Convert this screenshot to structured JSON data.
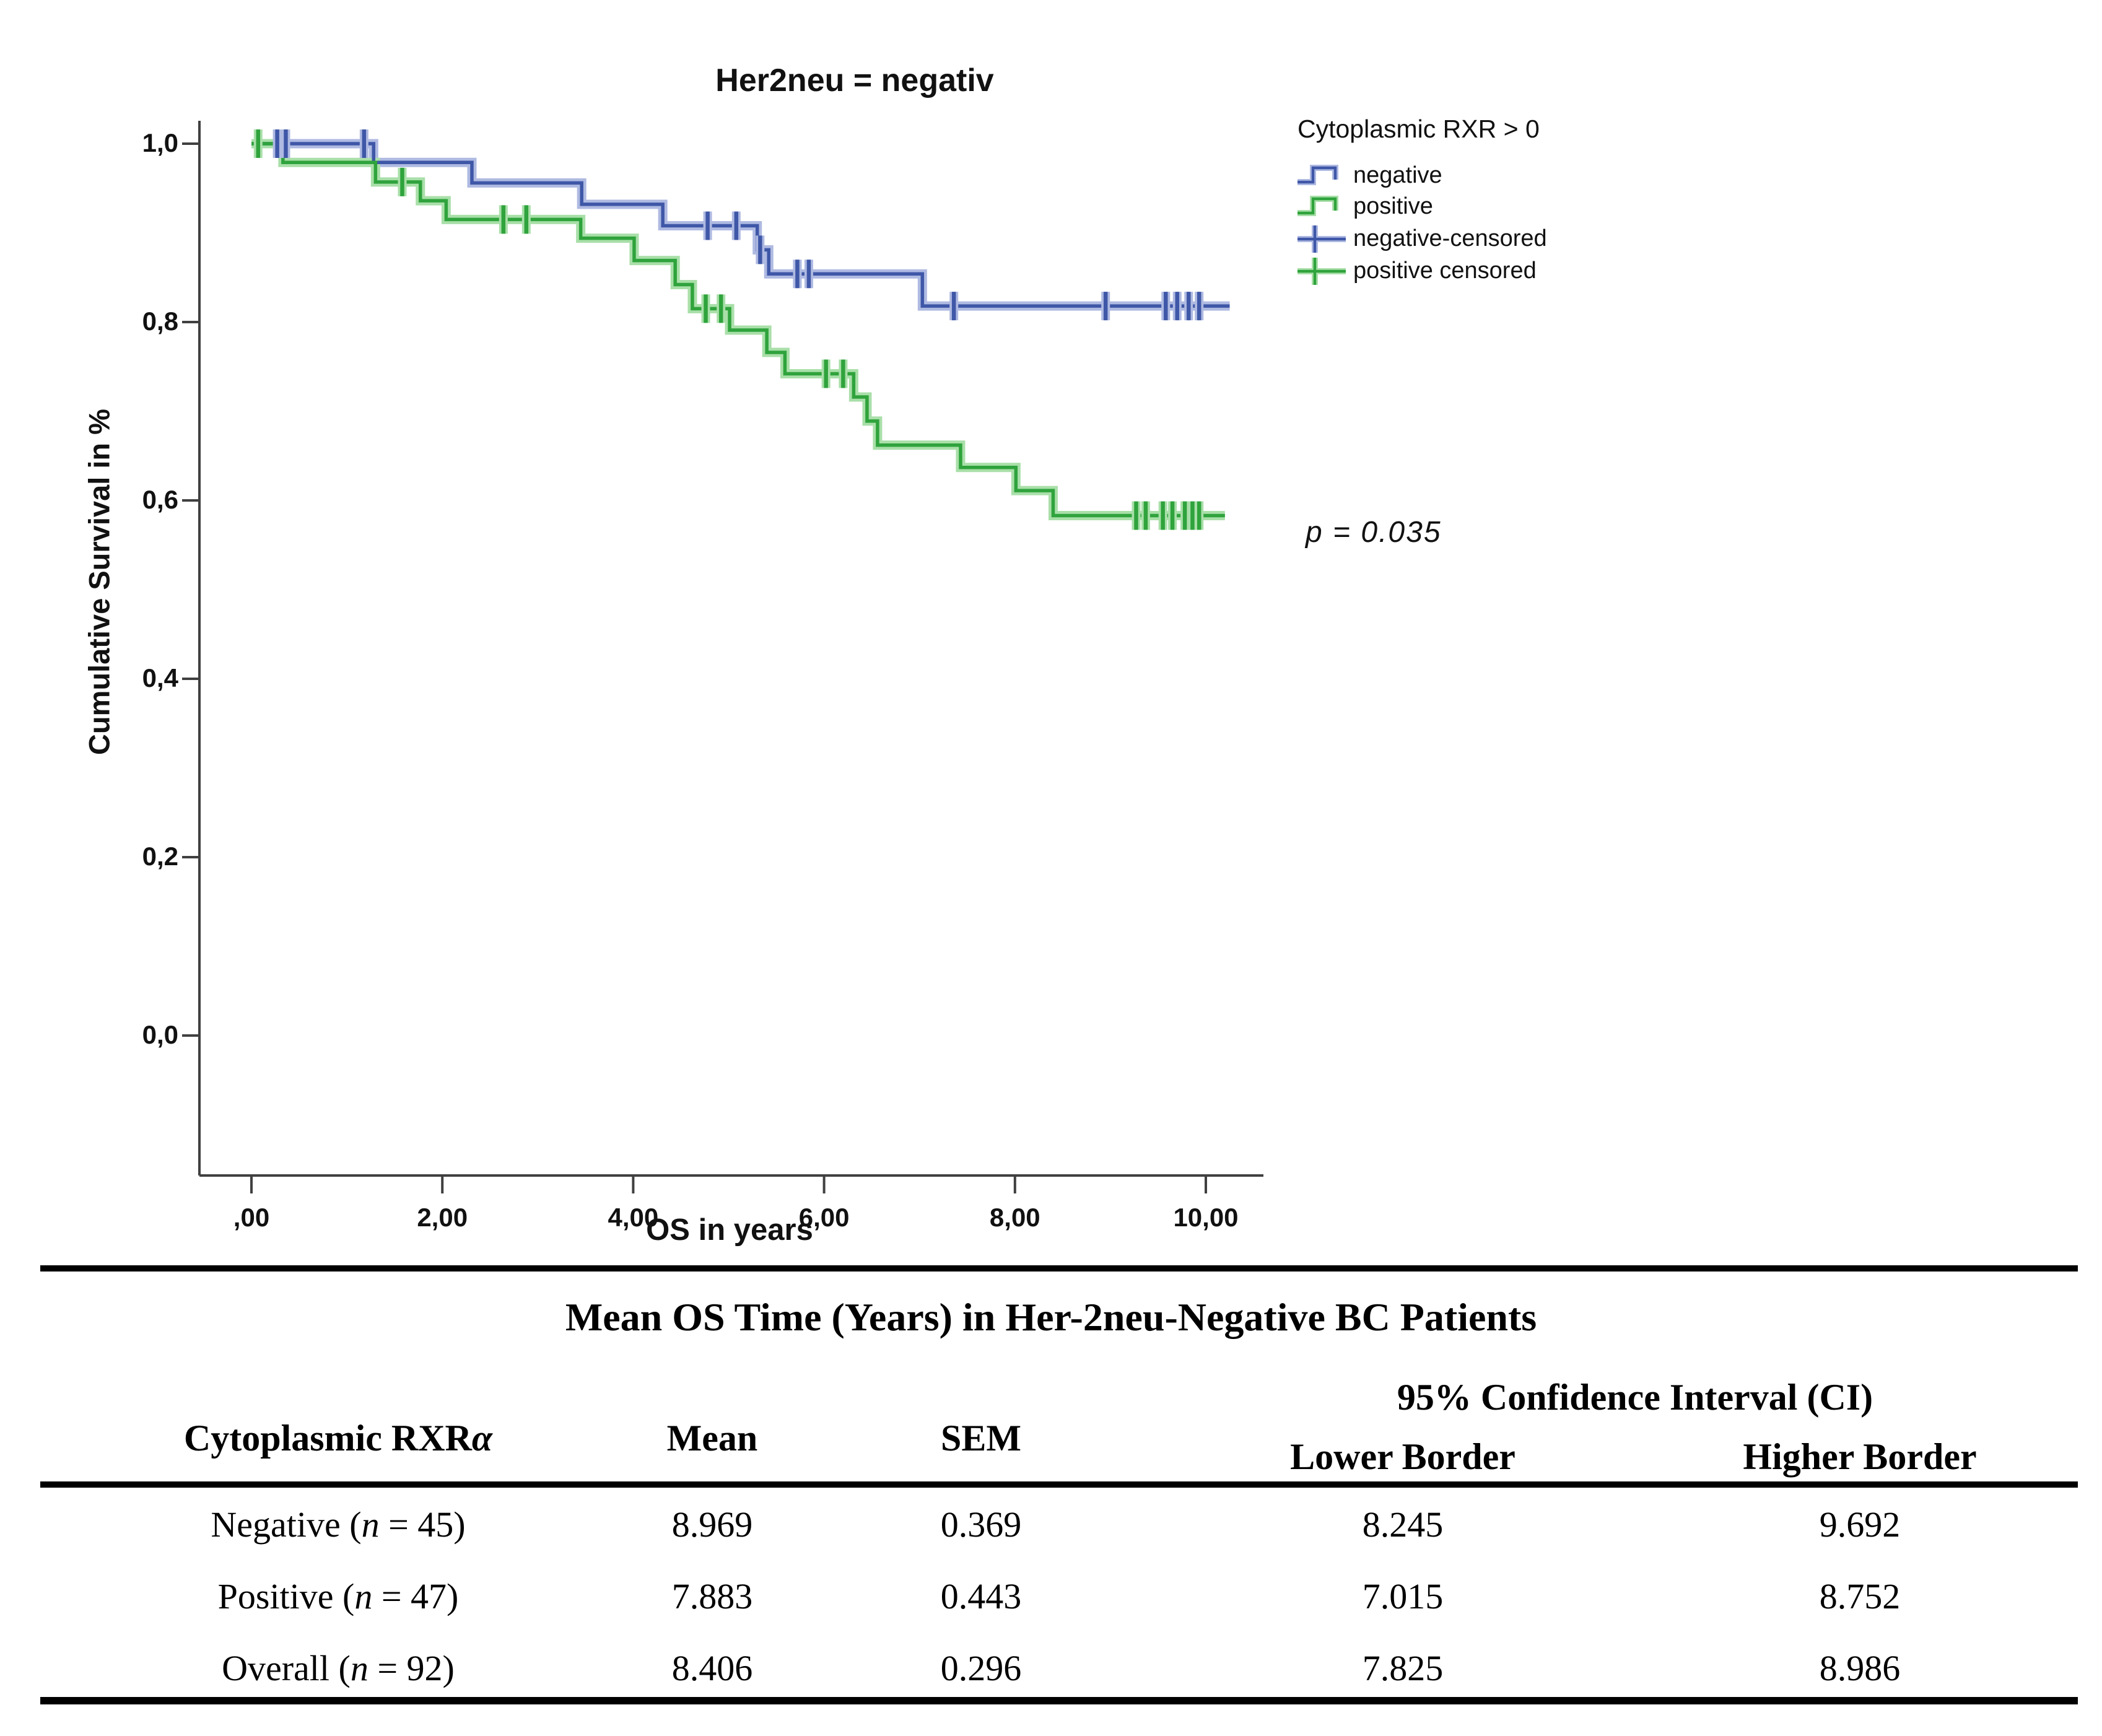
{
  "figure": {
    "title": "Her2neu = negativ"
  },
  "chart_data": {
    "type": "line",
    "subtype": "kaplan-meier-step",
    "title": "Her2neu = negativ",
    "xlabel": "OS in years",
    "ylabel": "Cumulative Survival in %",
    "xlim": [
      -0.55,
      10.6
    ],
    "ylim": [
      -0.16,
      1.05
    ],
    "grid": false,
    "legend_position": "right",
    "x_ticks": {
      "values": [
        0,
        2,
        4,
        6,
        8,
        10
      ],
      "labels": [
        ",00",
        "2,00",
        "4,00",
        "6,00",
        "8,00",
        "10,00"
      ]
    },
    "y_ticks": {
      "values": [
        0.0,
        0.2,
        0.4,
        0.6,
        0.8,
        1.0
      ],
      "labels": [
        "0,0",
        "0,2",
        "0,4",
        "0,6",
        "0,8",
        "1,0"
      ]
    },
    "annotation": {
      "text": "p = 0.035"
    },
    "legend": {
      "title": "Cytoplasmic RXR > 0",
      "entries": [
        {
          "label": "negative",
          "symbol": "step",
          "color": "#3F57A7",
          "halo": "#AFBAE2"
        },
        {
          "label": "positive",
          "symbol": "step",
          "color": "#2FA33C",
          "halo": "#A9DFA9"
        },
        {
          "label": "negative-censored",
          "symbol": "cross",
          "color": "#3F57A7",
          "halo": "#AFBAE2"
        },
        {
          "label": "positive censored",
          "symbol": "cross",
          "color": "#2FA33C",
          "halo": "#A9DFA9"
        }
      ]
    },
    "series": [
      {
        "name": "negative",
        "color": "#3F57A7",
        "halo": "#AFBAE2",
        "steps": [
          [
            0,
            1.0
          ],
          [
            1.28,
            0.979
          ],
          [
            2.31,
            0.956
          ],
          [
            3.46,
            0.932
          ],
          [
            4.31,
            0.908
          ],
          [
            5.3,
            0.881
          ],
          [
            5.42,
            0.854
          ],
          [
            7.03,
            0.818
          ]
        ],
        "end_x": 10.25,
        "censors": [
          [
            0.27,
            1.0
          ],
          [
            0.36,
            1.0
          ],
          [
            1.18,
            1.0
          ],
          [
            4.78,
            0.908
          ],
          [
            5.08,
            0.908
          ],
          [
            5.33,
            0.881
          ],
          [
            5.72,
            0.854
          ],
          [
            5.84,
            0.854
          ],
          [
            7.36,
            0.818
          ],
          [
            8.95,
            0.818
          ],
          [
            9.58,
            0.818
          ],
          [
            9.7,
            0.818
          ],
          [
            9.82,
            0.818
          ],
          [
            9.93,
            0.818
          ]
        ]
      },
      {
        "name": "positive",
        "color": "#2FA33C",
        "halo": "#A9DFA9",
        "steps": [
          [
            0,
            1.0
          ],
          [
            0.33,
            0.979
          ],
          [
            1.3,
            0.957
          ],
          [
            1.77,
            0.936
          ],
          [
            2.04,
            0.915
          ],
          [
            3.45,
            0.894
          ],
          [
            4.01,
            0.869
          ],
          [
            4.44,
            0.842
          ],
          [
            4.62,
            0.815
          ],
          [
            5.01,
            0.791
          ],
          [
            5.4,
            0.766
          ],
          [
            5.59,
            0.742
          ],
          [
            6.31,
            0.716
          ],
          [
            6.45,
            0.689
          ],
          [
            6.56,
            0.662
          ],
          [
            7.43,
            0.637
          ],
          [
            8.01,
            0.611
          ],
          [
            8.4,
            0.583
          ]
        ],
        "end_x": 10.2,
        "censors": [
          [
            0.07,
            1.0
          ],
          [
            1.58,
            0.957
          ],
          [
            2.64,
            0.915
          ],
          [
            2.88,
            0.915
          ],
          [
            4.76,
            0.815
          ],
          [
            4.92,
            0.815
          ],
          [
            6.02,
            0.742
          ],
          [
            6.2,
            0.742
          ],
          [
            9.27,
            0.583
          ],
          [
            9.37,
            0.583
          ],
          [
            9.55,
            0.583
          ],
          [
            9.65,
            0.583
          ],
          [
            9.78,
            0.583
          ],
          [
            9.86,
            0.583
          ],
          [
            9.93,
            0.583
          ]
        ]
      }
    ]
  },
  "table": {
    "title": "Mean OS Time (Years) in Her-2neu-Negative BC Patients",
    "col_headers": {
      "group_main": "Cytoplasmic RXR",
      "group_symbol": "α",
      "mean": "Mean",
      "sem": "SEM",
      "ci": "95% Confidence Interval (CI)",
      "ci_lower": "Lower Border",
      "ci_higher": "Higher Border"
    },
    "rows": [
      {
        "group": "Negative",
        "n": "45",
        "mean": "8.969",
        "sem": "0.369",
        "lower": "8.245",
        "higher": "9.692"
      },
      {
        "group": "Positive",
        "n": "47",
        "mean": "7.883",
        "sem": "0.443",
        "lower": "7.015",
        "higher": "8.752"
      },
      {
        "group": "Overall",
        "n": "92",
        "mean": "8.406",
        "sem": "0.296",
        "lower": "7.825",
        "higher": "8.986"
      }
    ]
  }
}
